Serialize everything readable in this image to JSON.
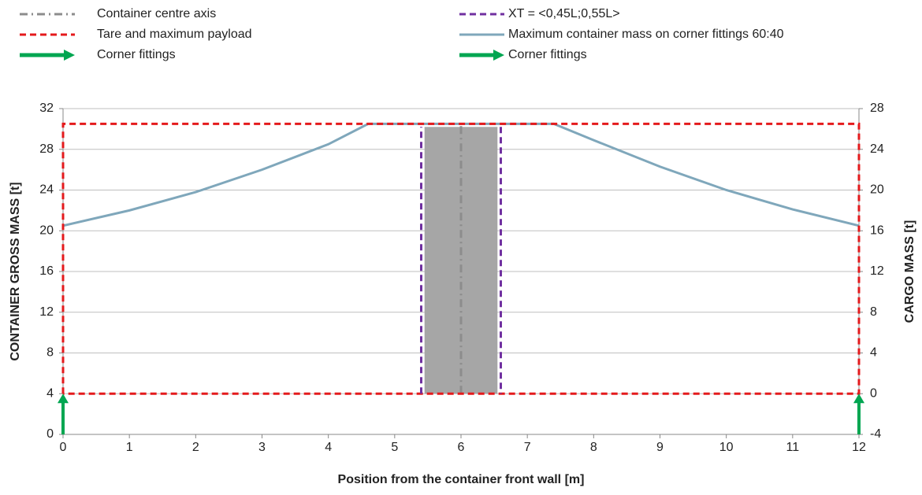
{
  "chart_data": {
    "type": "line",
    "x_label": "Position from the container front wall [m]",
    "y_label": "CONTAINER GROSS MASS [t]",
    "y2_label": "CARGO MASS [t]",
    "xlim": [
      0,
      12
    ],
    "xticks": [
      0,
      1,
      2,
      3,
      4,
      5,
      6,
      7,
      8,
      9,
      10,
      11,
      12
    ],
    "ylim": [
      0,
      32
    ],
    "yticks": [
      0,
      4,
      8,
      12,
      16,
      20,
      24,
      28,
      32
    ],
    "y2lim": [
      -4,
      28
    ],
    "y2ticks": [
      -4,
      0,
      4,
      8,
      12,
      16,
      20,
      24,
      28
    ],
    "grid": true,
    "band": {
      "x": [
        5.45,
        6.55
      ],
      "y": [
        4,
        30.2
      ],
      "color": "#a6a6a6"
    },
    "series": [
      {
        "name": "Container centre axis",
        "style": "dashdot",
        "color": "#8c8c8c",
        "x": [
          6,
          6
        ],
        "values": [
          4,
          30.5
        ]
      },
      {
        "name": "XT = <0,45L;0,55L>",
        "style": "dashed",
        "color": "#7030a0",
        "x": [
          5.4,
          5.4,
          5.4,
          6.6,
          6.6
        ],
        "values": [
          4,
          30.2,
          null,
          30.2,
          4
        ]
      },
      {
        "name": "Tare and maximum payload",
        "style": "dashed",
        "color": "#e41a1c",
        "x": [
          0,
          0,
          12,
          12,
          0
        ],
        "values": [
          4,
          30.5,
          30.5,
          4,
          4
        ]
      },
      {
        "name": "Maximum container mass on corner fittings 60:40",
        "style": "solid",
        "color": "#7fa7bb",
        "x": [
          0,
          1,
          2,
          3,
          4,
          4.6,
          7.4,
          8,
          9,
          10,
          11,
          12
        ],
        "values": [
          20.5,
          22,
          23.8,
          26,
          28.5,
          30.5,
          30.5,
          28.9,
          26.3,
          24,
          22.1,
          20.5
        ]
      },
      {
        "name": "Corner fittings",
        "style": "arrow",
        "color": "#00a651",
        "x": [
          0,
          0
        ],
        "values": [
          0,
          4
        ]
      },
      {
        "name": "Corner fittings",
        "style": "arrow",
        "color": "#00a651",
        "x": [
          12,
          12
        ],
        "values": [
          0,
          4
        ]
      }
    ]
  }
}
